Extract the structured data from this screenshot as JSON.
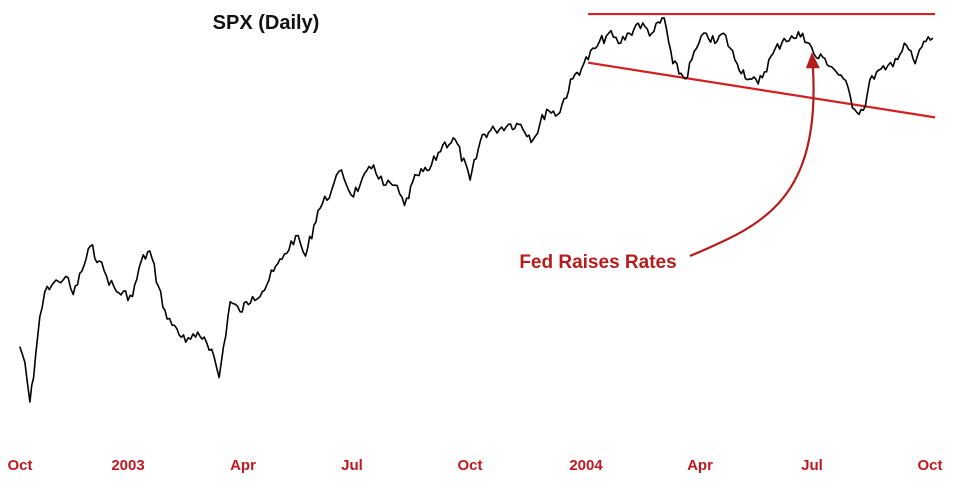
{
  "chart_data": {
    "type": "line",
    "title": "SPX (Daily)",
    "xlabel": "",
    "ylabel": "",
    "x_ticks": [
      "Oct",
      "2003",
      "Apr",
      "Jul",
      "Oct",
      "2004",
      "Apr",
      "Jul",
      "Oct"
    ],
    "x_range": [
      "2002-10-01",
      "2004-10-10"
    ],
    "y_axis_shown": false,
    "grid": false,
    "series": [
      {
        "values": [
          [
            "2002-10-01",
            830
          ],
          [
            "2002-10-05",
            815
          ],
          [
            "2002-10-09",
            776
          ],
          [
            "2002-10-12",
            800
          ],
          [
            "2002-10-17",
            860
          ],
          [
            "2002-10-23",
            890
          ],
          [
            "2002-11-01",
            895
          ],
          [
            "2002-11-07",
            900
          ],
          [
            "2002-11-13",
            882
          ],
          [
            "2002-11-20",
            905
          ],
          [
            "2002-11-27",
            930
          ],
          [
            "2002-12-04",
            915
          ],
          [
            "2002-12-10",
            900
          ],
          [
            "2002-12-18",
            885
          ],
          [
            "2002-12-31",
            880
          ],
          [
            "2003-01-07",
            915
          ],
          [
            "2003-01-14",
            925
          ],
          [
            "2003-01-21",
            890
          ],
          [
            "2003-01-28",
            858
          ],
          [
            "2003-02-05",
            848
          ],
          [
            "2003-02-12",
            835
          ],
          [
            "2003-02-20",
            840
          ],
          [
            "2003-02-27",
            840
          ],
          [
            "2003-03-05",
            828
          ],
          [
            "2003-03-11",
            800
          ],
          [
            "2003-03-20",
            875
          ],
          [
            "2003-03-28",
            865
          ],
          [
            "2003-04-07",
            880
          ],
          [
            "2003-04-15",
            885
          ],
          [
            "2003-04-24",
            905
          ],
          [
            "2003-05-01",
            917
          ],
          [
            "2003-05-12",
            940
          ],
          [
            "2003-05-20",
            920
          ],
          [
            "2003-05-30",
            965
          ],
          [
            "2003-06-10",
            985
          ],
          [
            "2003-06-18",
            1005
          ],
          [
            "2003-06-26",
            980
          ],
          [
            "2003-07-03",
            990
          ],
          [
            "2003-07-14",
            1010
          ],
          [
            "2003-07-22",
            990
          ],
          [
            "2003-07-31",
            990
          ],
          [
            "2003-08-08",
            970
          ],
          [
            "2003-08-18",
            1000
          ],
          [
            "2003-08-28",
            1005
          ],
          [
            "2003-09-08",
            1030
          ],
          [
            "2003-09-18",
            1035
          ],
          [
            "2003-09-30",
            995
          ],
          [
            "2003-10-10",
            1040
          ],
          [
            "2003-10-20",
            1045
          ],
          [
            "2003-10-31",
            1050
          ],
          [
            "2003-11-10",
            1050
          ],
          [
            "2003-11-20",
            1035
          ],
          [
            "2003-12-01",
            1065
          ],
          [
            "2003-12-10",
            1060
          ],
          [
            "2003-12-22",
            1095
          ],
          [
            "2003-12-31",
            1110
          ],
          [
            "2004-01-09",
            1125
          ],
          [
            "2004-01-20",
            1140
          ],
          [
            "2004-01-28",
            1130
          ],
          [
            "2004-02-06",
            1140
          ],
          [
            "2004-02-13",
            1150
          ],
          [
            "2004-02-24",
            1140
          ],
          [
            "2004-03-05",
            1155
          ],
          [
            "2004-03-12",
            1110
          ],
          [
            "2004-03-22",
            1095
          ],
          [
            "2004-03-31",
            1125
          ],
          [
            "2004-04-08",
            1140
          ],
          [
            "2004-04-15",
            1130
          ],
          [
            "2004-04-22",
            1140
          ],
          [
            "2004-05-03",
            1110
          ],
          [
            "2004-05-13",
            1095
          ],
          [
            "2004-05-20",
            1090
          ],
          [
            "2004-06-01",
            1120
          ],
          [
            "2004-06-10",
            1135
          ],
          [
            "2004-06-18",
            1135
          ],
          [
            "2004-06-25",
            1140
          ],
          [
            "2004-07-06",
            1116
          ],
          [
            "2004-07-13",
            1115
          ],
          [
            "2004-07-20",
            1105
          ],
          [
            "2004-07-28",
            1095
          ],
          [
            "2004-08-06",
            1065
          ],
          [
            "2004-08-13",
            1064
          ],
          [
            "2004-08-20",
            1098
          ],
          [
            "2004-08-31",
            1104
          ],
          [
            "2004-09-08",
            1115
          ],
          [
            "2004-09-17",
            1128
          ],
          [
            "2004-09-24",
            1110
          ],
          [
            "2004-10-01",
            1132
          ],
          [
            "2004-10-08",
            1135
          ]
        ]
      }
    ],
    "trendlines": [
      {
        "from": [
          "2004-01-01",
          1159
        ],
        "to": [
          "2004-10-10",
          1159
        ],
        "color": "#d42020"
      },
      {
        "from": [
          "2004-01-01",
          1111
        ],
        "to": [
          "2004-10-10",
          1057
        ],
        "color": "#d42020"
      }
    ],
    "annotations": [
      {
        "text": "Fed Raises Rates",
        "at": [
          "2004-06-30",
          1143
        ],
        "color": "#b51c1c"
      }
    ],
    "tick_color": "#c0181f",
    "line_color": "#000000"
  }
}
